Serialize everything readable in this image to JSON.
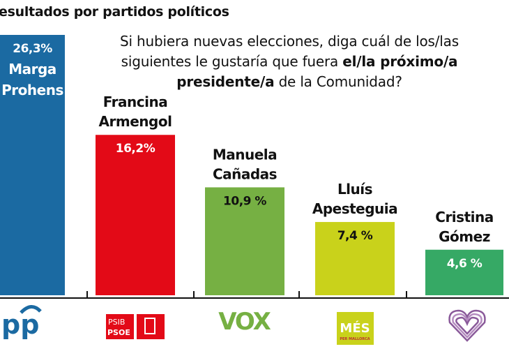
{
  "header": {
    "title": "esultados por partidos políticos",
    "question_pre": "Si hubiera nuevas elecciones, diga cuál de los/las siguientes le gustaría que fuera ",
    "question_bold": "el/la próximo/a presidente/a",
    "question_post": " de la Comunidad?"
  },
  "chart_data": {
    "type": "bar",
    "title": "",
    "categories": [
      "Marga Prohens",
      "Francina Armengol",
      "Manuela Cañadas",
      "Lluís Apesteguia",
      "Cristina Gómez"
    ],
    "name_lines": [
      [
        "Marga",
        "Prohens"
      ],
      [
        "Francina",
        "Armengol"
      ],
      [
        "Manuela",
        "Cañadas"
      ],
      [
        "Lluís",
        "Apesteguia"
      ],
      [
        "Cristina",
        "Gómez"
      ]
    ],
    "values": [
      26.3,
      16.2,
      10.9,
      7.4,
      4.6
    ],
    "value_labels": [
      "26,3%",
      "16,2%",
      "10,9 %",
      "7,4 %",
      "4,6 %"
    ],
    "parties": [
      "PP",
      "PSIB-PSOE",
      "VOX",
      "MÉS per Mallorca",
      "Podemos"
    ],
    "logo_text": {
      "pp": "pp",
      "psib": "PSIB",
      "psoe": "PSOE",
      "vox": "VOX",
      "mes": "MÉS",
      "mes_sub": "PER MALLORCA"
    },
    "colors": [
      "#1b6aa2",
      "#e30a17",
      "#76b043",
      "#c9d21b",
      "#36a965"
    ],
    "label_colors": [
      "#ffffff",
      "#ffffff",
      "#111111",
      "#111111",
      "#ffffff"
    ],
    "ylim": [
      0,
      26.3
    ],
    "grid": false,
    "legend": "none"
  }
}
